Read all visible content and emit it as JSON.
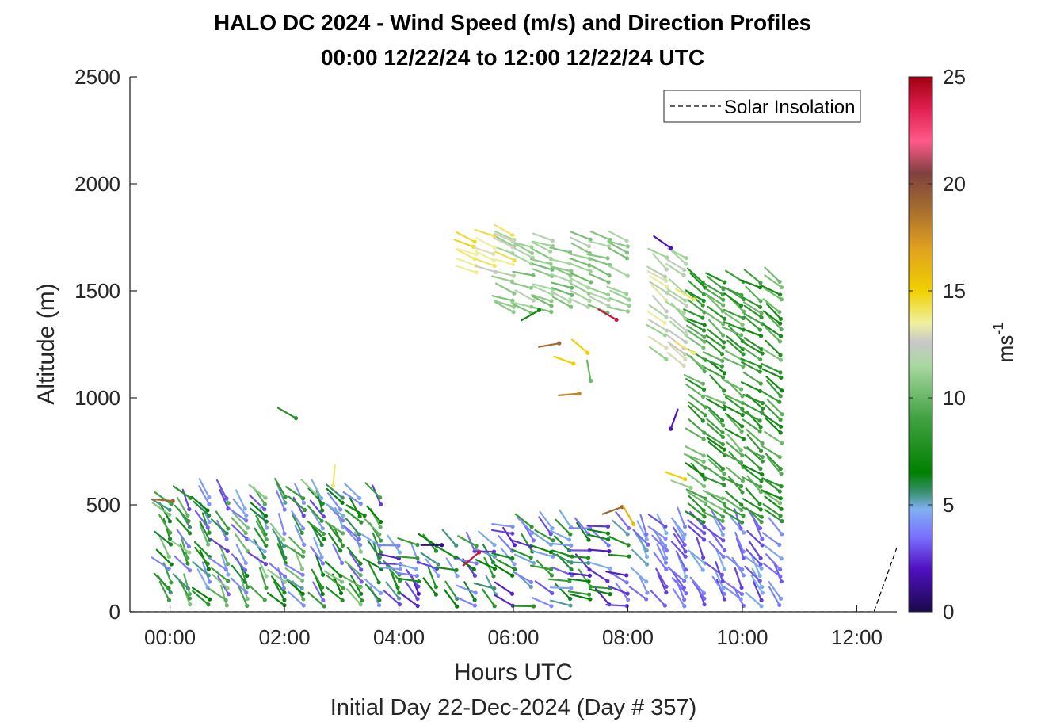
{
  "chart_data": {
    "type": "scatter",
    "subtype": "wind-barb-profile",
    "title": "HALO DC 2024 - Wind Speed (m/s) and Direction Profiles",
    "subtitle": "00:00 12/22/24 to 12:00 12/22/24  UTC",
    "xlabel": "Hours UTC",
    "xlabel_secondary": "Initial Day 22-Dec-2024 (Day # 357)",
    "ylabel": "Altitude (m)",
    "xlim": [
      -0.7,
      12.7
    ],
    "ylim": [
      0,
      2500
    ],
    "xticks": [
      {
        "value": 0,
        "label": "00:00"
      },
      {
        "value": 2,
        "label": "02:00"
      },
      {
        "value": 4,
        "label": "04:00"
      },
      {
        "value": 6,
        "label": "06:00"
      },
      {
        "value": 8,
        "label": "08:00"
      },
      {
        "value": 10,
        "label": "10:00"
      },
      {
        "value": 12,
        "label": "12:00"
      }
    ],
    "yticks": [
      0,
      500,
      1000,
      1500,
      2000,
      2500
    ],
    "legend": {
      "entries": [
        "Solar Insolation"
      ],
      "position": "top-right",
      "line_style": "dashed"
    },
    "colorbar": {
      "label_base": "ms",
      "label_exponent": "-1",
      "limits": [
        0,
        25
      ],
      "ticks": [
        0,
        5,
        10,
        15,
        20,
        25
      ],
      "stops": [
        {
          "v": 0,
          "color": "#1a0a4a"
        },
        {
          "v": 2,
          "color": "#5010c0"
        },
        {
          "v": 3.5,
          "color": "#7a70ff"
        },
        {
          "v": 4.8,
          "color": "#80b0f0"
        },
        {
          "v": 5.6,
          "color": "#3a9070"
        },
        {
          "v": 6.5,
          "color": "#008000"
        },
        {
          "v": 9,
          "color": "#40a040"
        },
        {
          "v": 11.5,
          "color": "#a8d8a0"
        },
        {
          "v": 12.6,
          "color": "#c8c8c8"
        },
        {
          "v": 13.5,
          "color": "#f0f0a0"
        },
        {
          "v": 15,
          "color": "#f0d000"
        },
        {
          "v": 17,
          "color": "#e0a020"
        },
        {
          "v": 19,
          "color": "#a06830"
        },
        {
          "v": 20.5,
          "color": "#804040"
        },
        {
          "v": 22,
          "color": "#ff5a8a"
        },
        {
          "v": 23.5,
          "color": "#e02050"
        },
        {
          "v": 25,
          "color": "#a00010"
        }
      ]
    },
    "solar_insolation": {
      "x": [
        -0.7,
        12.3,
        12.7
      ],
      "y": [
        0,
        0,
        300
      ]
    },
    "profile_times": [
      0,
      0.33,
      0.67,
      1,
      1.33,
      1.67,
      2,
      2.33,
      2.67,
      3,
      3.33,
      3.67,
      4,
      4.33,
      4.67,
      5,
      5.33,
      5.67,
      6,
      6.33,
      6.67,
      7,
      7.33,
      7.67,
      8,
      8.33,
      8.67,
      9,
      9.33,
      9.67,
      10,
      10.33,
      10.67
    ],
    "wind_regions": [
      {
        "t0": -0.1,
        "t1": 3.7,
        "z0": 30,
        "z1": 560,
        "spd": [
          2.5,
          11
        ],
        "dir": [
          300,
          345
        ]
      },
      {
        "t0": 3.7,
        "t1": 5.8,
        "z0": 30,
        "z1": 330,
        "spd": [
          2,
          9
        ],
        "dir": [
          270,
          340
        ]
      },
      {
        "t0": 5.8,
        "t1": 8.2,
        "z0": 30,
        "z1": 420,
        "spd": [
          2,
          9
        ],
        "dir": [
          270,
          330
        ]
      },
      {
        "t0": 8.2,
        "t1": 10.9,
        "z0": 30,
        "z1": 420,
        "spd": [
          2.5,
          5.2
        ],
        "dir": [
          305,
          345
        ]
      },
      {
        "t0": 9.3,
        "t1": 10.9,
        "z0": 420,
        "z1": 1560,
        "spd": [
          7,
          10.5
        ],
        "dir": [
          290,
          320
        ]
      },
      {
        "t0": 8.6,
        "t1": 9.3,
        "z0": 1150,
        "z1": 1660,
        "spd": [
          11,
          13.5
        ],
        "dir": [
          295,
          320
        ]
      },
      {
        "t0": 6.0,
        "t1": 8.0,
        "z0": 1400,
        "z1": 1760,
        "spd": [
          10,
          12
        ],
        "dir": [
          280,
          300
        ]
      },
      {
        "t0": 5.1,
        "t1": 6.0,
        "z0": 1590,
        "z1": 1760,
        "spd": [
          12.5,
          15
        ],
        "dir": [
          285,
          300
        ]
      }
    ],
    "wind_points": [
      {
        "t": 0.05,
        "z": 518,
        "spd": 19,
        "dir": 275
      },
      {
        "t": 2.2,
        "z": 905,
        "spd": 8,
        "dir": 300
      },
      {
        "t": 2.55,
        "z": 550,
        "spd": 11,
        "dir": 315
      },
      {
        "t": 2.85,
        "z": 590,
        "spd": 14,
        "dir": 5
      },
      {
        "t": 3.4,
        "z": 450,
        "spd": 7,
        "dir": 300
      },
      {
        "t": 4.75,
        "z": 312,
        "spd": 1,
        "dir": 270
      },
      {
        "t": 5.4,
        "z": 278,
        "spd": 24,
        "dir": 230
      },
      {
        "t": 6.45,
        "z": 1410,
        "spd": 7,
        "dir": 240
      },
      {
        "t": 6.8,
        "z": 1255,
        "spd": 19,
        "dir": 260
      },
      {
        "t": 7.05,
        "z": 1160,
        "spd": 15,
        "dir": 290
      },
      {
        "t": 7.15,
        "z": 1020,
        "spd": 18,
        "dir": 265
      },
      {
        "t": 7.3,
        "z": 1210,
        "spd": 15,
        "dir": 310
      },
      {
        "t": 7.35,
        "z": 1080,
        "spd": 10,
        "dir": 350
      },
      {
        "t": 7.8,
        "z": 1365,
        "spd": 24,
        "dir": 300
      },
      {
        "t": 7.9,
        "z": 490,
        "spd": 19,
        "dir": 250
      },
      {
        "t": 8.1,
        "z": 410,
        "spd": 16,
        "dir": 330
      },
      {
        "t": 8.75,
        "z": 1700,
        "spd": 2,
        "dir": 305
      },
      {
        "t": 8.75,
        "z": 855,
        "spd": 2,
        "dir": 20
      },
      {
        "t": 9.0,
        "z": 620,
        "spd": 15,
        "dir": 290
      },
      {
        "t": 9.1,
        "z": 580,
        "spd": 11,
        "dir": 290
      },
      {
        "t": 9.15,
        "z": 1460,
        "spd": 14,
        "dir": 300
      },
      {
        "t": 9.15,
        "z": 1210,
        "spd": 14,
        "dir": 300
      }
    ]
  }
}
